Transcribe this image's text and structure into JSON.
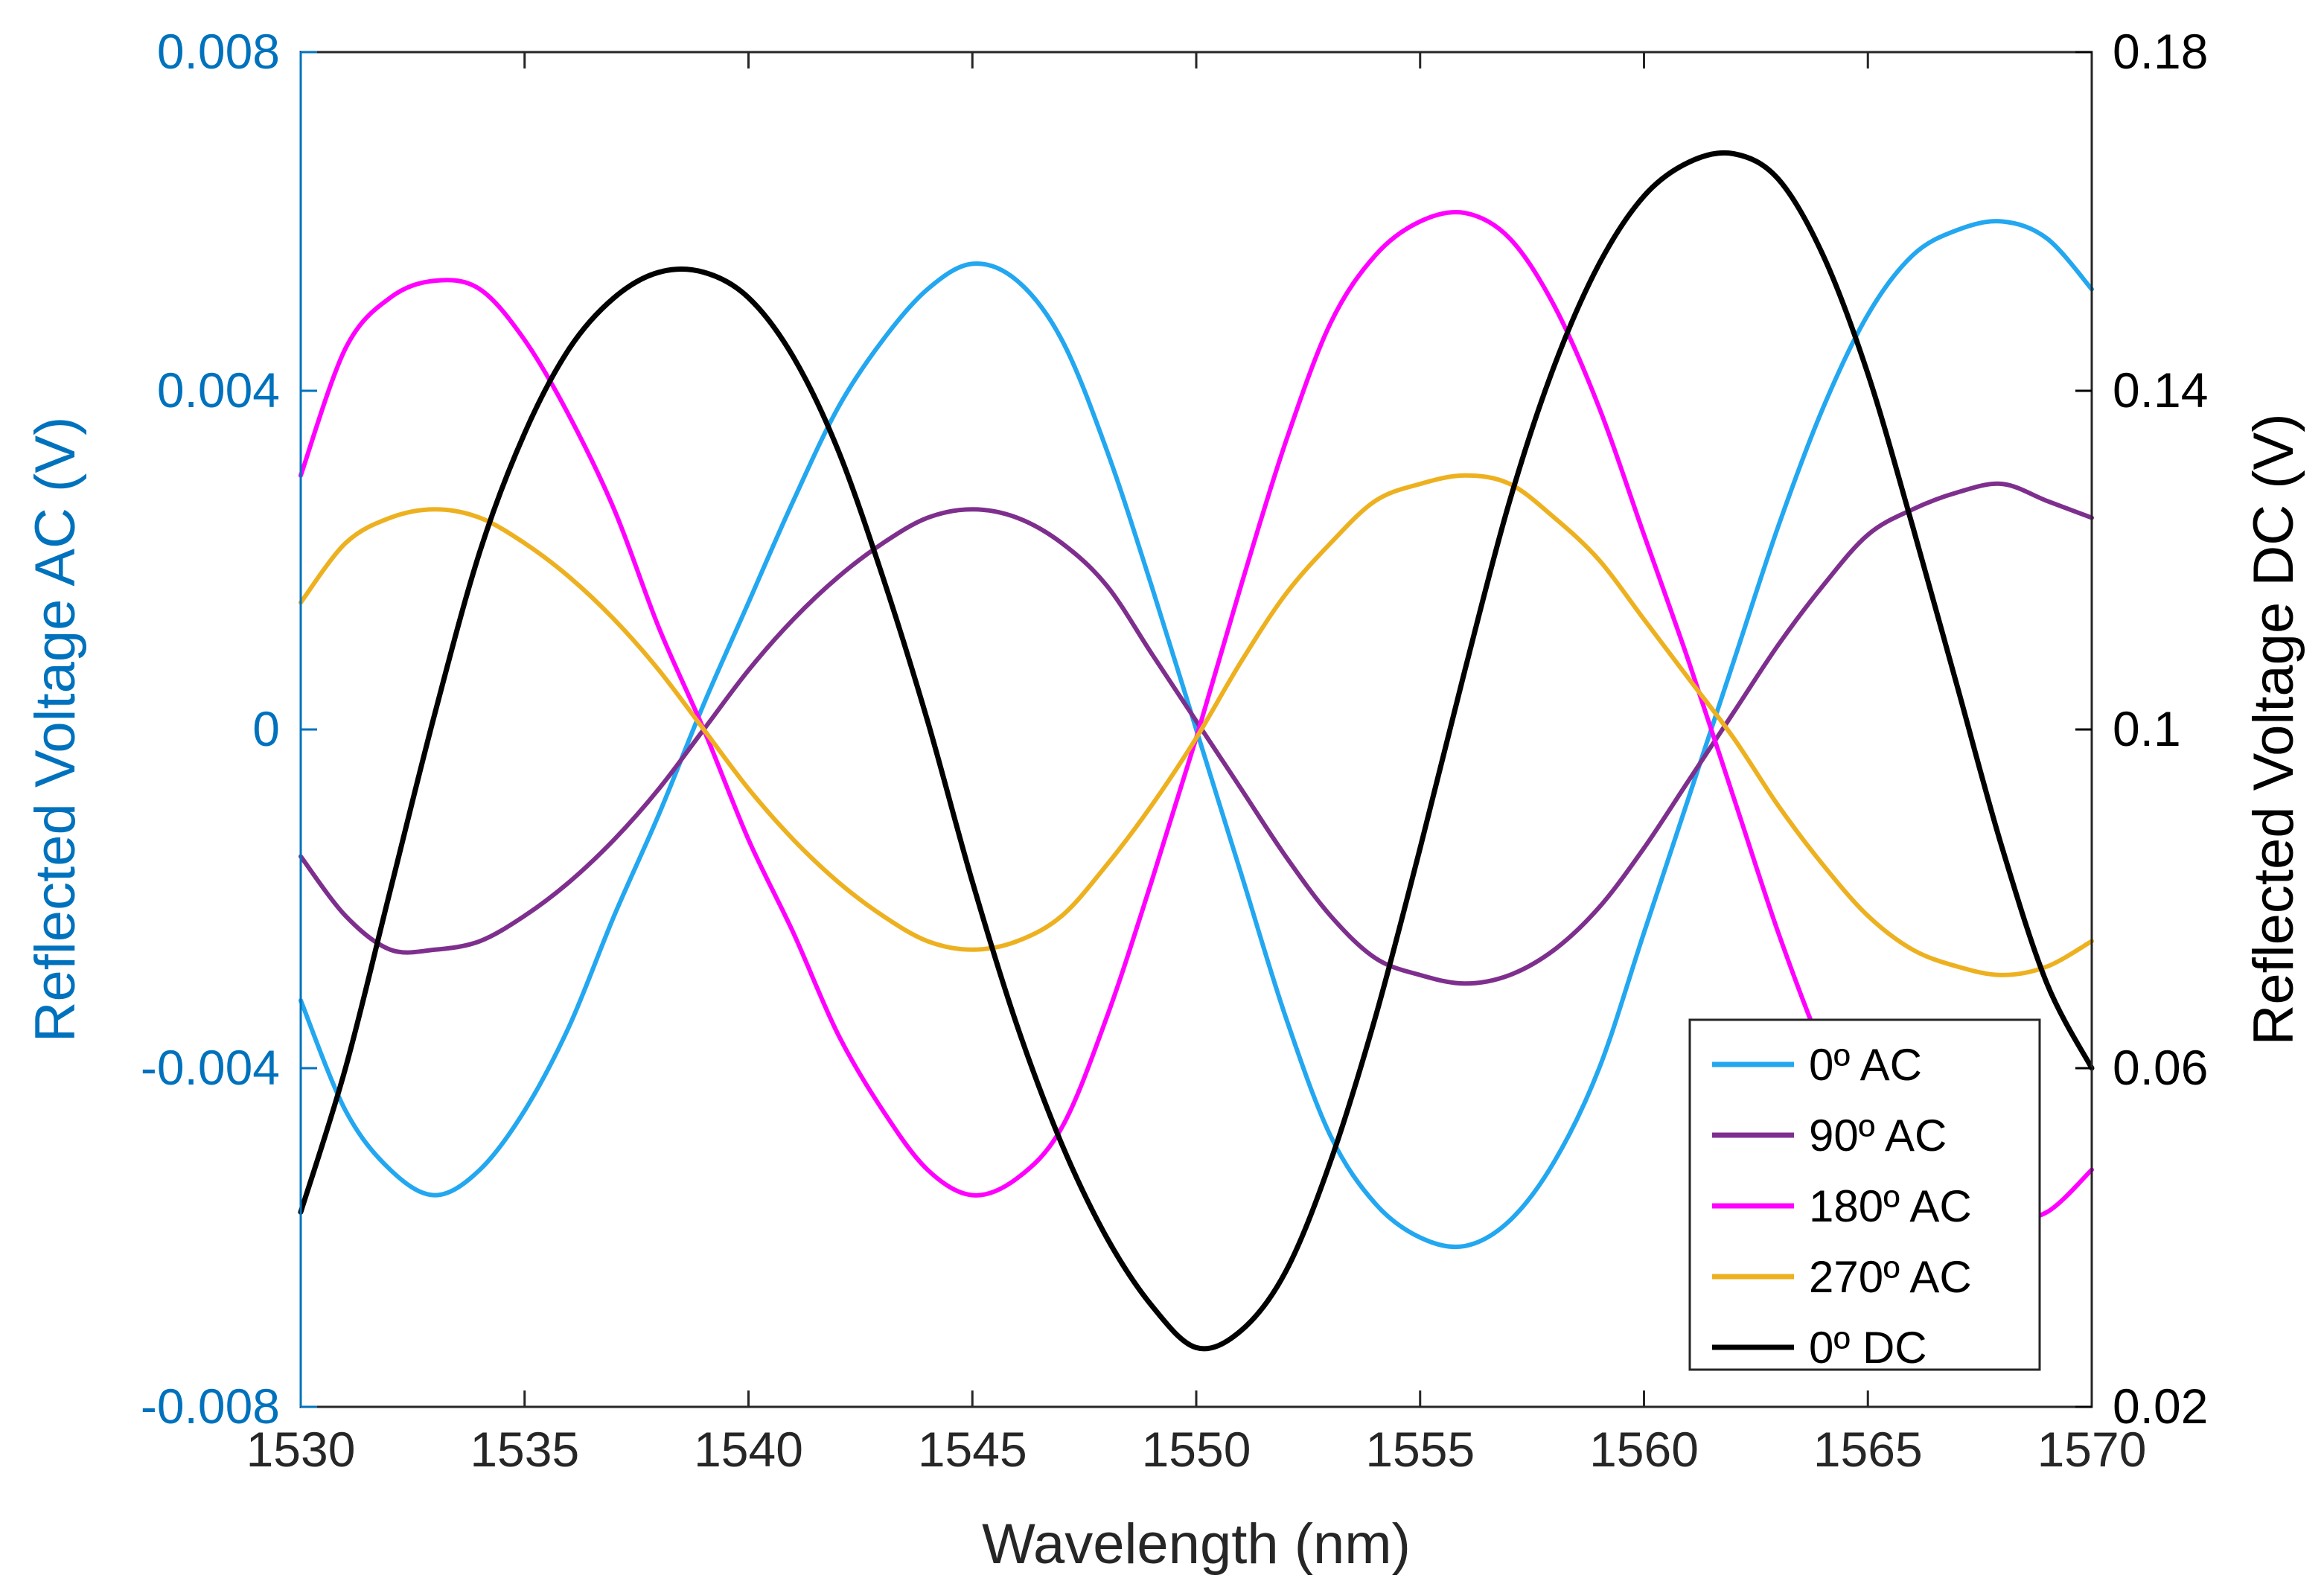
{
  "chart_data": {
    "type": "line",
    "xlabel": "Wavelength (nm)",
    "ylabel_left": "Reflected Voltage AC (V)",
    "ylabel_right": "Reflected Voltage DC (V)",
    "xlim": [
      1530,
      1570
    ],
    "ylim_left": [
      -0.008,
      0.008
    ],
    "ylim_right": [
      0.02,
      0.18
    ],
    "x_ticks": [
      1530,
      1535,
      1540,
      1545,
      1550,
      1555,
      1560,
      1565,
      1570
    ],
    "x_tick_labels": [
      "1530",
      "1535",
      "1540",
      "1545",
      "1550",
      "1555",
      "1560",
      "1565",
      "1570"
    ],
    "y_left_ticks": [
      -0.008,
      -0.004,
      0,
      0.004,
      0.008
    ],
    "y_left_tick_labels": [
      "-0.008",
      "-0.004",
      "0",
      "0.004",
      "0.008"
    ],
    "y_right_ticks": [
      0.02,
      0.06,
      0.1,
      0.14,
      0.18
    ],
    "y_right_tick_labels": [
      "0.02",
      "0.06",
      "0.1",
      "0.14",
      "0.18"
    ],
    "left_axis_color": "#0072BD",
    "right_axis_color": "#000000",
    "legend_position": "bottom-right",
    "x": [
      1530,
      1531,
      1532,
      1533,
      1534,
      1535,
      1536,
      1537,
      1538,
      1539,
      1540,
      1541,
      1542,
      1543,
      1544,
      1545,
      1546,
      1547,
      1548,
      1549,
      1550,
      1551,
      1552,
      1553,
      1554,
      1555,
      1556,
      1557,
      1558,
      1559,
      1560,
      1561,
      1562,
      1563,
      1564,
      1565,
      1566,
      1567,
      1568,
      1569,
      1570
    ],
    "series": [
      {
        "name": "0º AC",
        "axis": "left",
        "color": "#22A7F0",
        "values": [
          -0.0032,
          -0.0045,
          -0.0052,
          -0.0055,
          -0.0052,
          -0.0045,
          -0.0035,
          -0.0022,
          -0.001,
          0.0003,
          0.0015,
          0.0027,
          0.0038,
          0.0046,
          0.0052,
          0.0055,
          0.0053,
          0.0046,
          0.0033,
          0.0017,
          0.0,
          -0.0017,
          -0.0034,
          -0.0048,
          -0.0056,
          -0.006,
          -0.0061,
          -0.0058,
          -0.0051,
          -0.004,
          -0.0024,
          -0.0008,
          0.0008,
          0.0024,
          0.0038,
          0.0049,
          0.0056,
          0.0059,
          0.006,
          0.0058,
          0.0052
        ]
      },
      {
        "name": "90º AC",
        "axis": "left",
        "color": "#7E2F8E",
        "values": [
          -0.0015,
          -0.0022,
          -0.0026,
          -0.0026,
          -0.0025,
          -0.0022,
          -0.0018,
          -0.0013,
          -0.0007,
          0.0,
          0.0007,
          0.0013,
          0.0018,
          0.0022,
          0.0025,
          0.0026,
          0.0025,
          0.0022,
          0.0017,
          0.0009,
          0.0001,
          -0.0007,
          -0.0015,
          -0.0022,
          -0.0027,
          -0.0029,
          -0.003,
          -0.0029,
          -0.0026,
          -0.0021,
          -0.0014,
          -0.0006,
          0.0002,
          0.001,
          0.0017,
          0.0023,
          0.0026,
          0.0028,
          0.0029,
          0.0027,
          0.0025
        ]
      },
      {
        "name": "180º AC",
        "axis": "left",
        "color": "#FF00FF",
        "values": [
          0.003,
          0.0045,
          0.0051,
          0.0053,
          0.0052,
          0.0046,
          0.0037,
          0.0026,
          0.0012,
          0.0,
          -0.0013,
          -0.0024,
          -0.0036,
          -0.0045,
          -0.0052,
          -0.0055,
          -0.0053,
          -0.0047,
          -0.0034,
          -0.0018,
          -0.0001,
          0.0017,
          0.0034,
          0.0048,
          0.0056,
          0.006,
          0.0061,
          0.0058,
          0.005,
          0.0038,
          0.0023,
          0.0008,
          -0.0008,
          -0.0024,
          -0.0038,
          -0.005,
          -0.0055,
          -0.0058,
          -0.0058,
          -0.0057,
          -0.0052
        ]
      },
      {
        "name": "270º AC",
        "axis": "left",
        "color": "#EDB120",
        "values": [
          0.0015,
          0.0022,
          0.0025,
          0.0026,
          0.0025,
          0.0022,
          0.0018,
          0.0013,
          0.0007,
          0.0,
          -0.0007,
          -0.0013,
          -0.0018,
          -0.0022,
          -0.0025,
          -0.0026,
          -0.0025,
          -0.0022,
          -0.0016,
          -0.0009,
          -0.0001,
          0.0008,
          0.0016,
          0.0022,
          0.0027,
          0.0029,
          0.003,
          0.0029,
          0.0025,
          0.002,
          0.0013,
          0.0006,
          -0.0001,
          -0.0009,
          -0.0016,
          -0.0022,
          -0.0026,
          -0.0028,
          -0.0029,
          -0.0028,
          -0.0025
        ]
      },
      {
        "name": "0º DC",
        "axis": "right",
        "color": "#000000",
        "values": [
          0.043,
          0.06,
          0.081,
          0.102,
          0.121,
          0.135,
          0.145,
          0.151,
          0.154,
          0.154,
          0.151,
          0.144,
          0.133,
          0.118,
          0.101,
          0.082,
          0.065,
          0.051,
          0.04,
          0.032,
          0.027,
          0.029,
          0.036,
          0.049,
          0.066,
          0.086,
          0.107,
          0.127,
          0.143,
          0.155,
          0.163,
          0.167,
          0.168,
          0.165,
          0.156,
          0.142,
          0.124,
          0.105,
          0.086,
          0.07,
          0.06
        ]
      }
    ]
  }
}
